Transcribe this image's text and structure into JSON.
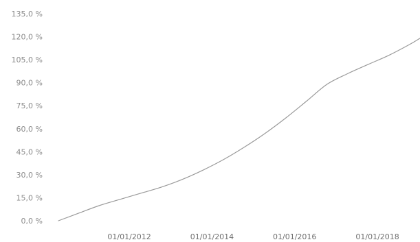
{
  "chart_data": {
    "type": "line",
    "title": "",
    "xlabel": "",
    "ylabel": "",
    "x_type": "date",
    "xlim": [
      "2011-01-01",
      "2019-09-30"
    ],
    "ylim": [
      0,
      135
    ],
    "grid": false,
    "y_ticks": [
      0,
      15,
      30,
      45,
      60,
      75,
      90,
      105,
      120,
      135
    ],
    "y_tick_labels": [
      "0,0 %",
      "15,0 %",
      "30,0 %",
      "45,0 %",
      "60,0 %",
      "75,0 %",
      "90,0 %",
      "105,0 %",
      "120,0 %",
      "135,0 %"
    ],
    "x_ticks": [
      "2012-01-01",
      "2014-01-01",
      "2016-01-01",
      "2018-01-01"
    ],
    "x_tick_labels": [
      "01/01/2012",
      "01/01/2014",
      "01/01/2016",
      "01/01/2018"
    ],
    "line_color": "#9a9a9a",
    "text_color": "#8a8a8a",
    "series": [
      {
        "x": [
          "2011-01-01",
          "2011-07-01",
          "2012-01-01",
          "2012-07-01",
          "2013-01-01",
          "2013-07-01",
          "2014-01-01",
          "2014-07-01",
          "2015-01-01",
          "2015-07-01",
          "2016-01-01",
          "2016-07-01",
          "2017-01-01",
          "2017-07-01",
          "2018-01-01",
          "2018-07-01",
          "2019-01-01",
          "2019-07-01",
          "2019-09-30"
        ],
        "values": [
          0,
          5,
          10,
          14,
          18,
          22,
          27,
          33,
          40,
          48,
          57,
          67,
          78,
          89,
          96,
          102,
          108,
          115,
          119
        ]
      }
    ]
  }
}
